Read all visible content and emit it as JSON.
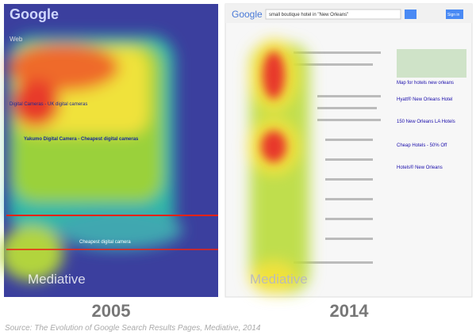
{
  "panels": [
    {
      "year": "2005",
      "logo": "Google",
      "tab": "Web",
      "results": [
        "Yakumo Digital Camera - Cheapest digital cameras",
        "Digital Cameras - UK digital cameras",
        "Cheapest digital camera"
      ],
      "watermark": "Mediative"
    },
    {
      "year": "2014",
      "logo": "Google",
      "query": "small boutique hotel in \"New Orleans\"",
      "sign_in": "Sign in",
      "map_link": "Map for hotels new orleans",
      "ads": [
        "Hyatt® New Orleans Hotel",
        "150 New Orleans LA Hotels",
        "Cheap Hotels - 50% Off",
        "Hotels® New Orleans"
      ],
      "watermark": "Mediative"
    }
  ],
  "source": "Source: The Evolution of Google Search Results Pages, Mediative, 2014"
}
